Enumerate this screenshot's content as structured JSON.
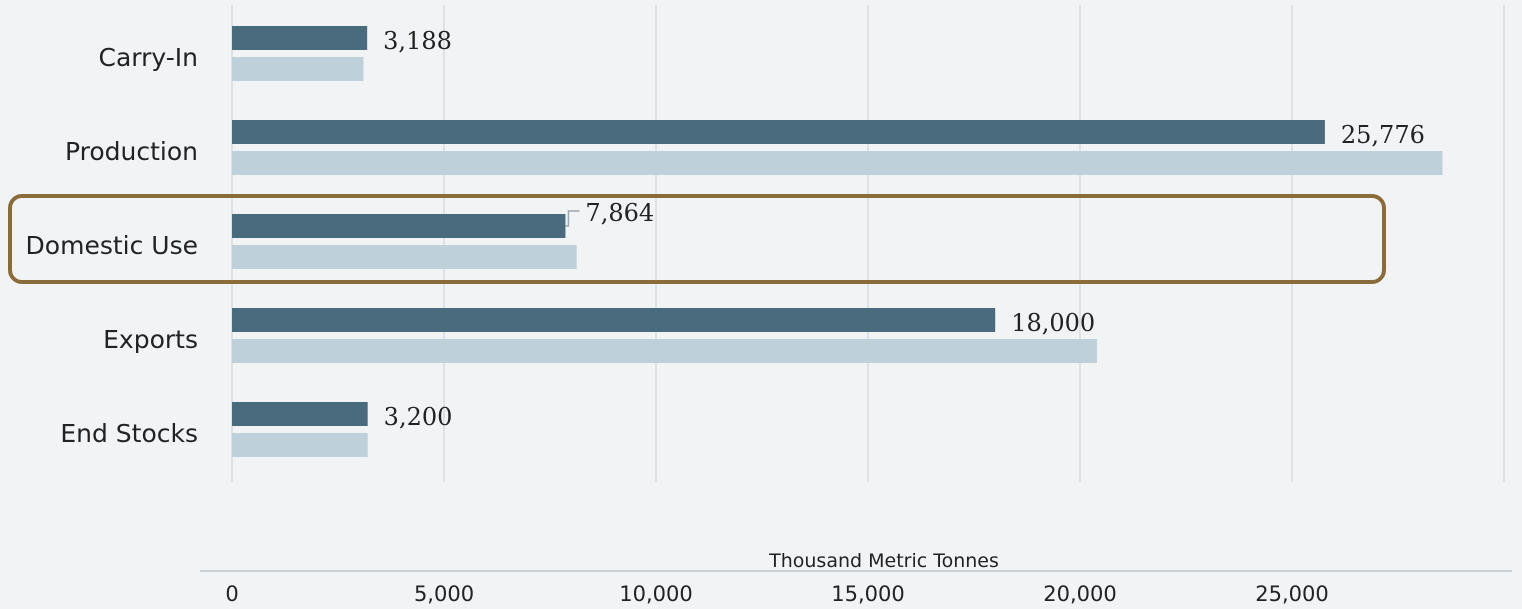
{
  "chart_data": {
    "type": "bar",
    "orientation": "horizontal",
    "categories": [
      "Carry-In",
      "Production",
      "Domestic Use",
      "Exports",
      "End Stocks"
    ],
    "series": [
      {
        "values": [
          3188,
          25776,
          7864,
          18000,
          3200
        ],
        "color": "#4a6b7d"
      },
      {
        "values": [
          3100,
          28550,
          8130,
          20400,
          3200
        ],
        "color": "#bed1da"
      }
    ],
    "data_labels": [
      "3,188",
      "25,776",
      "7,864",
      "18,000",
      "3,200"
    ],
    "xlabel": "Thousand Metric Tonnes",
    "x_ticks": [
      0,
      5000,
      10000,
      15000,
      20000,
      25000
    ],
    "x_tick_labels": [
      "0",
      "5,000",
      "10,000",
      "15,000",
      "20,000",
      "25,000"
    ],
    "xlim": [
      0,
      30000
    ],
    "grid": true,
    "highlighted_category": "Domestic Use",
    "highlight_color": "#8b6b3a"
  }
}
